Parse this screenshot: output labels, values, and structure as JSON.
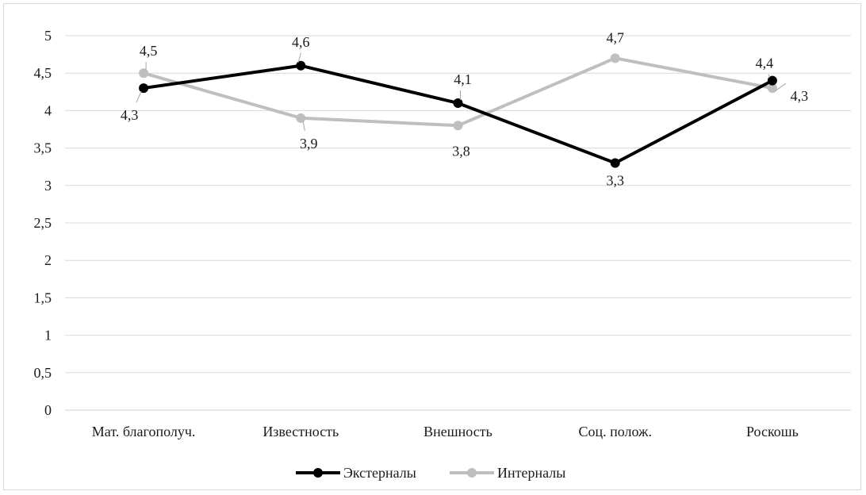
{
  "chart_data": {
    "type": "line",
    "categories": [
      "Мат. благополуч.",
      "Известность",
      "Внешность",
      "Соц. полож.",
      "Роскошь"
    ],
    "series": [
      {
        "name": "Экстерналы",
        "values": [
          4.3,
          4.6,
          4.1,
          3.3,
          4.4
        ],
        "color": "#000000"
      },
      {
        "name": "Интерналы",
        "values": [
          4.5,
          3.9,
          3.8,
          4.7,
          4.3
        ],
        "color": "#bfbfbf"
      }
    ],
    "ylim": [
      0,
      5
    ],
    "ytick_step": 0.5,
    "y_tick_labels": [
      "0",
      "0,5",
      "1",
      "1,5",
      "2",
      "2,5",
      "3",
      "3,5",
      "4",
      "4,5",
      "5"
    ],
    "data_labels": {
      "Экстерналы": [
        "4,3",
        "4,6",
        "4,1",
        "3,3",
        "4,4"
      ],
      "Интерналы": [
        "4,5",
        "3,9",
        "3,8",
        "4,7",
        "4,3"
      ]
    },
    "grid": true,
    "legend": "bottom",
    "title": "",
    "xlabel": "",
    "ylabel": ""
  }
}
